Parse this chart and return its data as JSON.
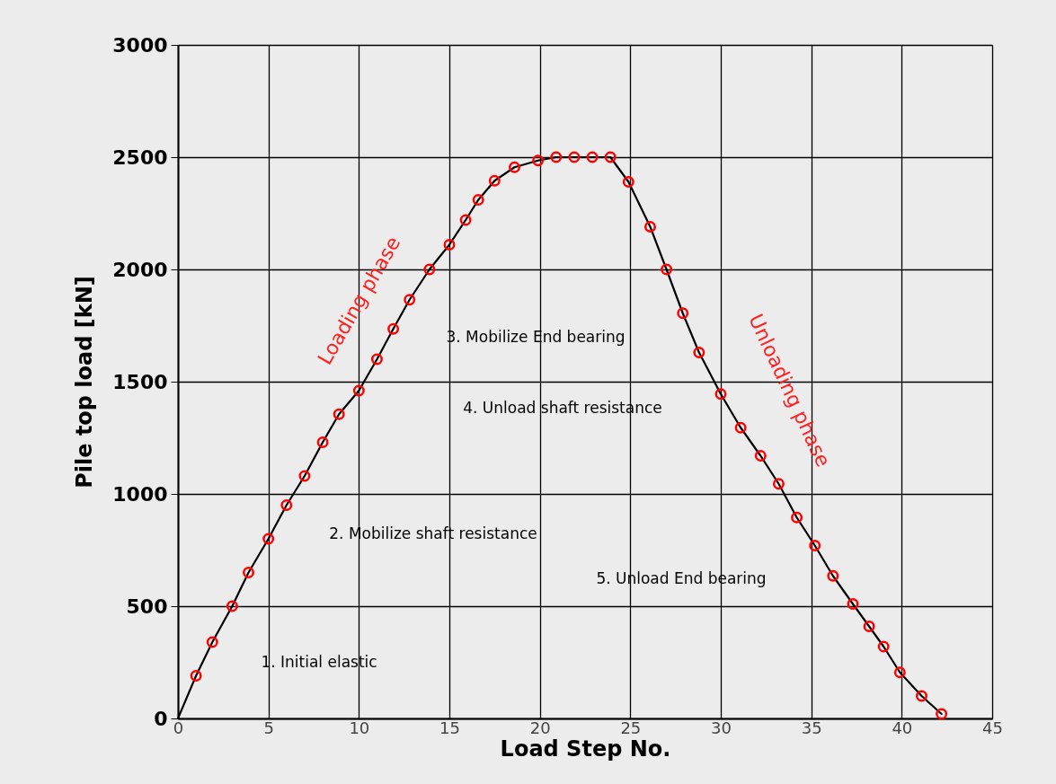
{
  "chart_data": {
    "type": "line",
    "xlabel": "Load Step No.",
    "ylabel": "Pile top load [kN]",
    "xlim": [
      0,
      45
    ],
    "ylim": [
      0,
      3000
    ],
    "xticks": [
      0,
      5,
      10,
      15,
      20,
      25,
      30,
      35,
      40,
      45
    ],
    "yticks": [
      0,
      500,
      1000,
      1500,
      2000,
      2500,
      3000
    ],
    "grid": true,
    "series": [
      {
        "color": "#000000",
        "marker": "none",
        "x": [
          0,
          1,
          1.9,
          3,
          3.9,
          5,
          6,
          7,
          8,
          8.9,
          10,
          11,
          11.9,
          12.8,
          13.9,
          15,
          15.9,
          16.6,
          17.5,
          18.6,
          19.9,
          20.9,
          21.9,
          22.9,
          23.9,
          24.9,
          26.1,
          27,
          27.9,
          28.8,
          30,
          31.1,
          32.2,
          33.2,
          34.2,
          35.2,
          36.2,
          37.3,
          38.2,
          39,
          39.9,
          41.1,
          42.2
        ],
        "values": [
          0,
          190,
          340,
          500,
          650,
          800,
          950,
          1080,
          1230,
          1355,
          1460,
          1600,
          1735,
          1865,
          2000,
          2110,
          2220,
          2310,
          2395,
          2455,
          2485,
          2500,
          2500,
          2500,
          2500,
          2390,
          2190,
          2000,
          1805,
          1630,
          1445,
          1295,
          1170,
          1045,
          895,
          770,
          635,
          510,
          410,
          320,
          205,
          100,
          20
        ]
      },
      {
        "type": "scatter",
        "color": "#ff0000",
        "marker": "circle",
        "x": [
          1,
          1.9,
          3,
          3.9,
          5,
          6,
          7,
          8,
          8.9,
          10,
          11,
          11.9,
          12.8,
          13.9,
          15,
          15.9,
          16.6,
          17.5,
          18.6,
          19.9,
          20.9,
          21.9,
          22.9,
          23.9,
          24.9,
          26.1,
          27,
          27.9,
          28.8,
          30,
          31.1,
          32.2,
          33.2,
          34.2,
          35.2,
          36.2,
          37.3,
          38.2,
          39,
          39.9,
          41.1,
          42.2
        ],
        "values": [
          190,
          340,
          500,
          650,
          800,
          950,
          1080,
          1230,
          1355,
          1460,
          1600,
          1735,
          1865,
          2000,
          2110,
          2220,
          2310,
          2395,
          2455,
          2485,
          2500,
          2500,
          2500,
          2500,
          2390,
          2190,
          2000,
          1805,
          1630,
          1445,
          1295,
          1170,
          1045,
          895,
          770,
          635,
          510,
          410,
          320,
          205,
          100,
          20
        ]
      }
    ],
    "annotations": [
      "Loading phase",
      "Unloading phase",
      "1. Initial elastic",
      "2. Mobilize shaft resistance",
      "3. Mobilize End bearing",
      "4. Unload shaft resistance",
      "5. Unload End bearing"
    ]
  }
}
